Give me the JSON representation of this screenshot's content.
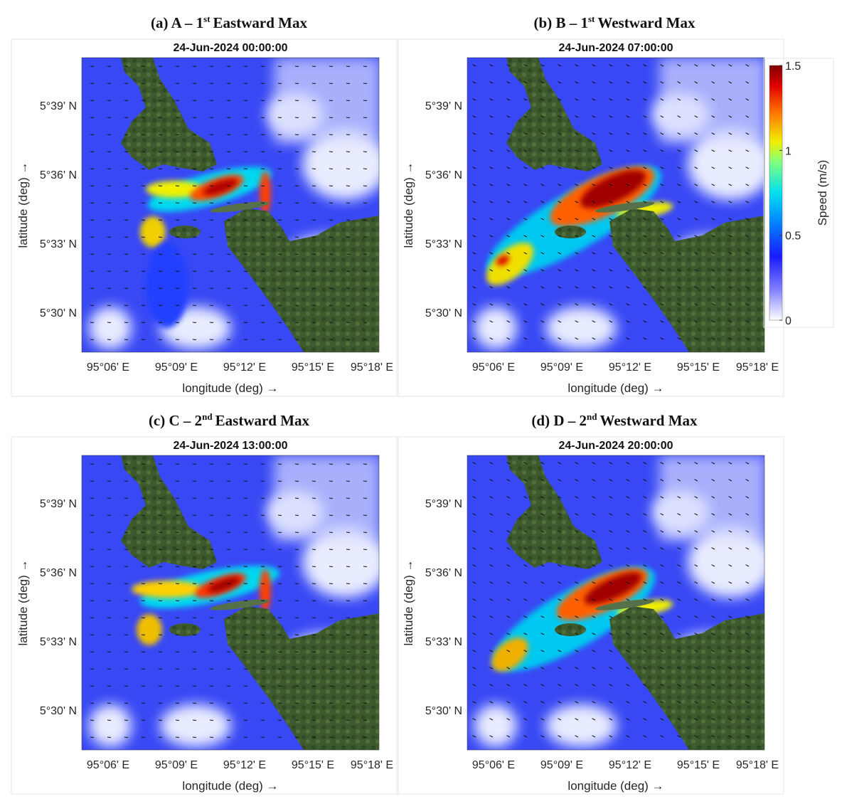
{
  "panels": [
    {
      "title_prefix": "(a) A – 1",
      "title_sup": "st",
      "title_suffix": "Eastward Max",
      "timestamp": "24-Jun-2024 00:00:00"
    },
    {
      "title_prefix": "(b) B – 1",
      "title_sup": "st",
      "title_suffix": "Westward Max",
      "timestamp": "24-Jun-2024 07:00:00"
    },
    {
      "title_prefix": "(c) C – 2",
      "title_sup": "nd",
      "title_suffix": "Eastward Max",
      "timestamp": "24-Jun-2024 13:00:00"
    },
    {
      "title_prefix": "(d) D – 2",
      "title_sup": "nd",
      "title_suffix": "Westward Max",
      "timestamp": "24-Jun-2024 20:00:00"
    }
  ],
  "axes": {
    "xticks": [
      "95°06' E",
      "95°09' E",
      "95°12' E",
      "95°15' E",
      "95°18' E"
    ],
    "yticks": [
      "5°39' N",
      "5°36' N",
      "5°33' N",
      "5°30' N"
    ],
    "xlabel": "longitude (deg) →",
    "ylabel": "latitude (deg) →"
  },
  "colorbar": {
    "label": "Speed (m/s)",
    "lim": [
      0,
      1.5
    ],
    "ticks": [
      0,
      0.5,
      1,
      1.5
    ]
  }
}
